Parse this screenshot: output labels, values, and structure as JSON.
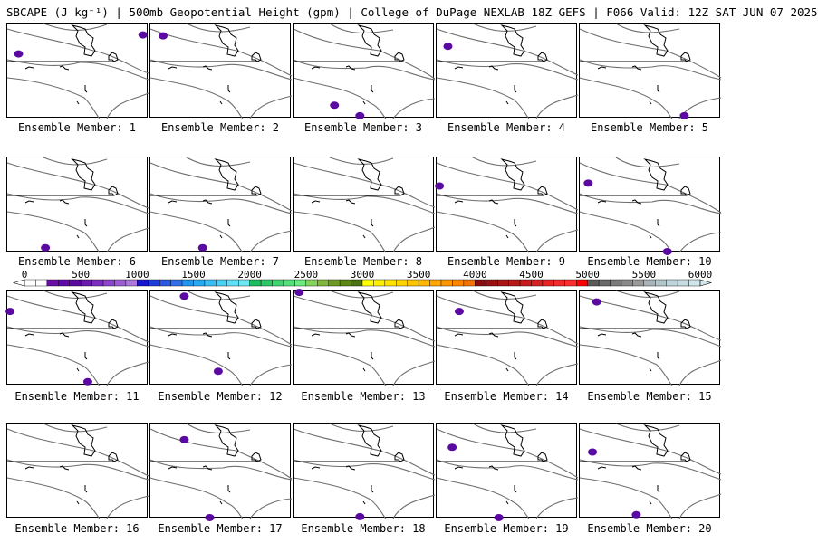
{
  "title": "SBCAPE (J kg⁻¹) | 500mb Geopotential Height (gpm) | College of DuPage NEXLAB 18Z GEFS | F066 Valid: 12Z SAT JUN 07 2025",
  "caption_prefix": "Ensemble Member:",
  "members": [
    {
      "label": "Ensemble Member: 1",
      "blobs": [
        [
          0.08,
          0.32
        ],
        [
          0.96,
          0.12
        ]
      ]
    },
    {
      "label": "Ensemble Member: 2",
      "blobs": [
        [
          0.09,
          0.13
        ]
      ]
    },
    {
      "label": "Ensemble Member: 3",
      "blobs": [
        [
          0.29,
          0.86
        ],
        [
          0.47,
          0.97
        ]
      ]
    },
    {
      "label": "Ensemble Member: 4",
      "blobs": [
        [
          0.08,
          0.24
        ]
      ]
    },
    {
      "label": "Ensemble Member: 5",
      "blobs": [
        [
          0.74,
          0.97
        ]
      ]
    },
    {
      "label": "Ensemble Member: 6",
      "blobs": [
        [
          0.27,
          0.95
        ]
      ]
    },
    {
      "label": "Ensemble Member: 7",
      "blobs": [
        [
          0.37,
          0.95
        ]
      ]
    },
    {
      "label": "Ensemble Member: 8",
      "blobs": []
    },
    {
      "label": "Ensemble Member: 9",
      "blobs": [
        [
          0.02,
          0.3
        ]
      ]
    },
    {
      "label": "Ensemble Member: 10",
      "blobs": [
        [
          0.06,
          0.27
        ],
        [
          0.62,
          0.99
        ]
      ]
    },
    {
      "label": "Ensemble Member: 11",
      "blobs": [
        [
          0.02,
          0.22
        ],
        [
          0.57,
          0.96
        ]
      ]
    },
    {
      "label": "Ensemble Member: 12",
      "blobs": [
        [
          0.24,
          0.06
        ],
        [
          0.48,
          0.85
        ]
      ]
    },
    {
      "label": "Ensemble Member: 13",
      "blobs": [
        [
          0.04,
          0.02
        ]
      ]
    },
    {
      "label": "Ensemble Member: 14",
      "blobs": [
        [
          0.16,
          0.22
        ]
      ]
    },
    {
      "label": "Ensemble Member: 15",
      "blobs": [
        [
          0.12,
          0.12
        ]
      ]
    },
    {
      "label": "Ensemble Member: 16",
      "blobs": []
    },
    {
      "label": "Ensemble Member: 17",
      "blobs": [
        [
          0.24,
          0.17
        ],
        [
          0.42,
          0.99
        ]
      ]
    },
    {
      "label": "Ensemble Member: 18",
      "blobs": [
        [
          0.47,
          0.98
        ]
      ]
    },
    {
      "label": "Ensemble Member: 19",
      "blobs": [
        [
          0.11,
          0.25
        ],
        [
          0.44,
          0.99
        ]
      ]
    },
    {
      "label": "Ensemble Member: 20",
      "blobs": [
        [
          0.09,
          0.3
        ],
        [
          0.4,
          0.96
        ]
      ]
    }
  ],
  "colorbar": {
    "ticks": [
      "0",
      "500",
      "1000",
      "1500",
      "2000",
      "2500",
      "3000",
      "3500",
      "4000",
      "4500",
      "5000",
      "5500",
      "6000"
    ],
    "min": 0,
    "max": 6000,
    "step": 100,
    "colors": [
      "#ffffff",
      "#ffffff",
      "#6a0fa6",
      "#5f08a8",
      "#5a0aa0",
      "#6a1ab0",
      "#7b2fc0",
      "#8c45cc",
      "#9c5cd6",
      "#ae78e0",
      "#1515d0",
      "#1f3cdb",
      "#2857e3",
      "#2f70ea",
      "#1f96f0",
      "#28aaf2",
      "#38bef4",
      "#4cd0f6",
      "#5fe0f8",
      "#6ee8f0",
      "#1bbd5f",
      "#2cc866",
      "#3ed56f",
      "#55e07a",
      "#6deb80",
      "#85d45c",
      "#7fb83a",
      "#6f9a22",
      "#5d8815",
      "#4b7410",
      "#ffff00",
      "#ffee00",
      "#ffe200",
      "#ffd400",
      "#ffc600",
      "#ffb800",
      "#ffa600",
      "#ff9600",
      "#ff8400",
      "#f57200",
      "#8c0a10",
      "#9b0f12",
      "#aa1414",
      "#b81818",
      "#c81c1c",
      "#d82020",
      "#e82424",
      "#f22a2a",
      "#ff2e2e",
      "#ff0000",
      "#5a5a5a",
      "#6a6a6a",
      "#7a7a7a",
      "#8a8a8a",
      "#9a9a9a",
      "#a8b4b8",
      "#b2c6cc",
      "#bcd4da",
      "#c4dce2",
      "#d0e6ea"
    ]
  },
  "colors": {
    "contour": "#6e6e6e",
    "coast": "#000000",
    "cape_low": "#5a0aa0"
  }
}
